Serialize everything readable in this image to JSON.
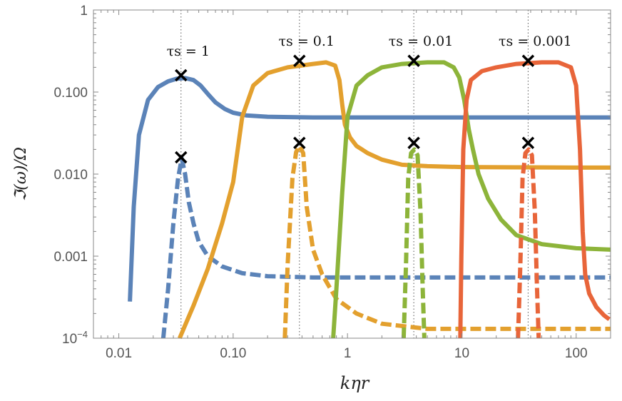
{
  "chart_data": {
    "type": "line",
    "title": "",
    "xlabel": "kηr",
    "ylabel": "ℑ(ω)/Ω",
    "xscale": "log",
    "yscale": "log",
    "xlim": [
      0.006,
      200
    ],
    "ylim": [
      0.0001,
      1
    ],
    "grid": false,
    "x_ticks": [
      {
        "value": 0.01,
        "label": "0.01"
      },
      {
        "value": 0.1,
        "label": "0.10"
      },
      {
        "value": 1,
        "label": "1"
      },
      {
        "value": 10,
        "label": "10"
      },
      {
        "value": 100,
        "label": "100"
      }
    ],
    "y_ticks": [
      {
        "value": 0.0001,
        "label": "10",
        "sup": "−4"
      },
      {
        "value": 0.001,
        "label": "0.001"
      },
      {
        "value": 0.01,
        "label": "0.010"
      },
      {
        "value": 0.1,
        "label": "0.100"
      },
      {
        "value": 1,
        "label": "1"
      }
    ],
    "series": [
      {
        "label": "τs = 1",
        "color": "#5b83b8",
        "style": "solid",
        "x": [
          0.0125,
          0.0135,
          0.015,
          0.018,
          0.022,
          0.027,
          0.032,
          0.038,
          0.045,
          0.052,
          0.06,
          0.07,
          0.085,
          0.1,
          0.13,
          0.2,
          0.5,
          2,
          10,
          50,
          200
        ],
        "y": [
          0.00028,
          0.004,
          0.03,
          0.08,
          0.115,
          0.135,
          0.145,
          0.148,
          0.14,
          0.12,
          0.095,
          0.075,
          0.062,
          0.056,
          0.052,
          0.05,
          0.049,
          0.049,
          0.049,
          0.049,
          0.049
        ]
      },
      {
        "label": "τs = 1",
        "color": "#5b83b8",
        "style": "dashed",
        "x": [
          0.0245,
          0.027,
          0.03,
          0.033,
          0.0355,
          0.038,
          0.041,
          0.045,
          0.05,
          0.06,
          0.08,
          0.12,
          0.2,
          0.5,
          2,
          10,
          50,
          200
        ],
        "y": [
          0.0001,
          0.0004,
          0.0025,
          0.009,
          0.0155,
          0.01,
          0.0045,
          0.0025,
          0.0015,
          0.001,
          0.00075,
          0.00062,
          0.00057,
          0.00055,
          0.00055,
          0.00055,
          0.00055,
          0.00055
        ]
      },
      {
        "label": "τs = 0.1",
        "color": "#e3a02e",
        "style": "solid",
        "x": [
          0.034,
          0.045,
          0.06,
          0.08,
          0.1,
          0.12,
          0.15,
          0.2,
          0.3,
          0.5,
          0.65,
          0.78,
          0.85,
          0.9,
          0.95,
          1.05,
          1.2,
          1.5,
          2,
          3,
          5,
          10,
          30,
          100,
          200
        ],
        "y": [
          0.0001,
          0.00025,
          0.0007,
          0.0025,
          0.008,
          0.05,
          0.12,
          0.17,
          0.2,
          0.22,
          0.23,
          0.21,
          0.14,
          0.07,
          0.04,
          0.028,
          0.022,
          0.018,
          0.015,
          0.013,
          0.0125,
          0.0122,
          0.0121,
          0.012,
          0.012
        ]
      },
      {
        "label": "τs = 0.1",
        "color": "#e3a02e",
        "style": "dashed",
        "x": [
          0.283,
          0.3,
          0.33,
          0.355,
          0.38,
          0.41,
          0.44,
          0.5,
          0.6,
          0.8,
          1.2,
          2,
          5,
          20,
          100,
          200
        ],
        "y": [
          0.0001,
          0.0008,
          0.009,
          0.0185,
          0.022,
          0.018,
          0.004,
          0.0012,
          0.0006,
          0.0003,
          0.0002,
          0.00015,
          0.00013,
          0.00013,
          0.00013,
          0.00013
        ]
      },
      {
        "label": "τs = 0.01",
        "color": "#8db43a",
        "style": "solid",
        "x": [
          0.75,
          0.8,
          0.9,
          1.0,
          1.2,
          1.5,
          2,
          3,
          5,
          7,
          8.5,
          9.5,
          10.5,
          11.5,
          12.5,
          14,
          17,
          22,
          30,
          50,
          100,
          200
        ],
        "y": [
          0.0001,
          0.0004,
          0.006,
          0.05,
          0.12,
          0.16,
          0.2,
          0.22,
          0.23,
          0.23,
          0.2,
          0.15,
          0.08,
          0.035,
          0.02,
          0.01,
          0.005,
          0.0028,
          0.0018,
          0.0014,
          0.00125,
          0.0012
        ]
      },
      {
        "label": "τs = 0.01",
        "color": "#8db43a",
        "style": "dashed",
        "x": [
          3.1,
          3.25,
          3.4,
          3.6,
          3.85,
          4.1,
          4.35,
          4.55,
          4.7
        ],
        "y": [
          0.0001,
          0.0008,
          0.009,
          0.018,
          0.02,
          0.017,
          0.0035,
          0.0004,
          0.0001
        ]
      },
      {
        "label": "τs = 0.001",
        "color": "#e8653a",
        "style": "solid",
        "x": [
          9.7,
          9.9,
          10.3,
          11,
          12,
          15,
          20,
          30,
          50,
          70,
          90,
          100,
          108,
          114,
          120,
          130,
          150,
          175,
          195
        ],
        "y": [
          0.0001,
          0.001,
          0.02,
          0.08,
          0.14,
          0.18,
          0.2,
          0.22,
          0.23,
          0.23,
          0.2,
          0.12,
          0.02,
          0.002,
          0.0006,
          0.00035,
          0.00024,
          0.00019,
          0.00017
        ]
      },
      {
        "label": "τs = 0.001",
        "color": "#e8653a",
        "style": "dashed",
        "x": [
          31,
          32.5,
          34,
          36,
          38.5,
          41,
          43.5,
          45.5,
          47
        ],
        "y": [
          0.0001,
          0.0008,
          0.009,
          0.018,
          0.02,
          0.017,
          0.0035,
          0.0004,
          0.0001
        ]
      }
    ],
    "markers": [
      {
        "x": 0.035,
        "y": 0.16
      },
      {
        "x": 0.035,
        "y": 0.016
      },
      {
        "x": 0.38,
        "y": 0.24
      },
      {
        "x": 0.38,
        "y": 0.024
      },
      {
        "x": 3.8,
        "y": 0.24
      },
      {
        "x": 3.8,
        "y": 0.024
      },
      {
        "x": 38,
        "y": 0.24
      },
      {
        "x": 38,
        "y": 0.024
      }
    ],
    "vlines": [
      0.035,
      0.38,
      3.8,
      38
    ],
    "annotations": [
      {
        "text": "τs = 1",
        "x": 0.035
      },
      {
        "text": "τs = 0.1",
        "x": 0.38
      },
      {
        "text": "τs = 0.01",
        "x": 3.8
      },
      {
        "text": "τs = 0.001",
        "x": 38
      }
    ]
  }
}
